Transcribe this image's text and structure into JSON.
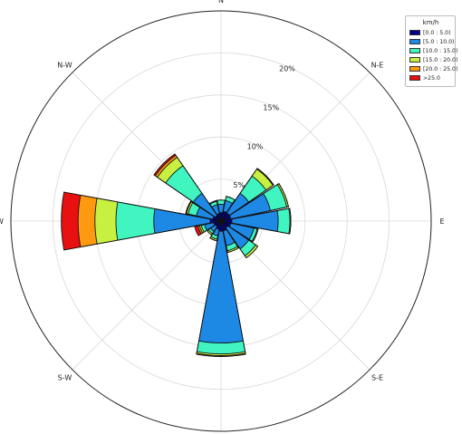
{
  "chart_data": {
    "type": "windrose",
    "legend": {
      "title": "km/h",
      "placement": "top-right",
      "entries": [
        {
          "label": "[0.0 : 5.0)",
          "color": "#00008b"
        },
        {
          "label": "[5.0 : 10.0)",
          "color": "#1e88e5"
        },
        {
          "label": "[10.0 : 15.0)",
          "color": "#40f5c0"
        },
        {
          "label": "[15.0 : 20.0)",
          "color": "#c8f040"
        },
        {
          "label": "[20.0 : 25.0)",
          "color": "#ff9a10"
        },
        {
          "label": ">25.0",
          "color": "#e81010"
        }
      ]
    },
    "directions": [
      "N",
      "NNE",
      "NE",
      "ENE",
      "E",
      "ESE",
      "SE",
      "SSE",
      "S",
      "SSW",
      "SW",
      "WSW",
      "W",
      "WNW",
      "NW",
      "NNW"
    ],
    "direction_labels": [
      "N",
      "N-E",
      "E",
      "S-E",
      "S",
      "S-W",
      "W",
      "N-W"
    ],
    "radial_ticks": [
      "5%",
      "10%",
      "15%",
      "20%"
    ],
    "radial_max": 25,
    "grid": true,
    "cumulative_frequency_percent": [
      [
        1.0,
        2.0,
        2.5,
        2.5,
        2.5,
        2.5
      ],
      [
        1.2,
        2.5,
        3.0,
        3.0,
        3.0,
        3.0
      ],
      [
        1.2,
        4.0,
        6.5,
        7.5,
        7.6,
        7.6
      ],
      [
        1.2,
        6.0,
        8.0,
        8.2,
        8.2,
        8.2
      ],
      [
        1.3,
        6.8,
        8.2,
        8.3,
        8.3,
        8.3
      ],
      [
        1.2,
        4.0,
        4.4,
        4.5,
        4.5,
        4.5
      ],
      [
        1.0,
        4.0,
        5.0,
        5.3,
        5.3,
        5.3
      ],
      [
        1.2,
        3.0,
        3.6,
        3.8,
        3.8,
        3.8
      ],
      [
        1.2,
        14.5,
        15.8,
        16.0,
        16.1,
        16.1
      ],
      [
        1.0,
        1.8,
        2.2,
        2.4,
        2.4,
        2.4
      ],
      [
        0.8,
        1.5,
        1.8,
        2.0,
        2.0,
        2.0
      ],
      [
        0.9,
        2.0,
        2.4,
        2.6,
        2.8,
        3.2
      ],
      [
        1.3,
        8.0,
        12.5,
        15.0,
        17.0,
        19.0
      ],
      [
        1.0,
        3.0,
        4.0,
        4.2,
        4.3,
        4.3
      ],
      [
        0.8,
        4.0,
        8.0,
        9.2,
        9.5,
        9.7
      ],
      [
        0.9,
        2.0,
        2.4,
        2.5,
        2.5,
        2.5
      ]
    ]
  }
}
